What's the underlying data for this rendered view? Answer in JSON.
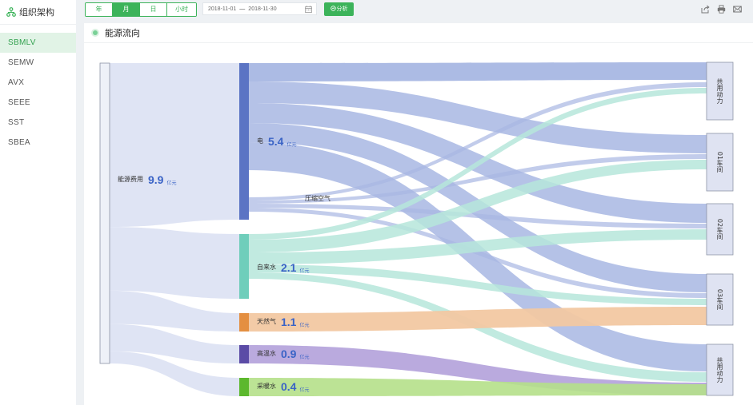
{
  "sidebar": {
    "title": "组织架构",
    "items": [
      {
        "label": "SBMLV",
        "active": true
      },
      {
        "label": "SEMW",
        "active": false
      },
      {
        "label": "AVX",
        "active": false
      },
      {
        "label": "SEEE",
        "active": false
      },
      {
        "label": "SST",
        "active": false
      },
      {
        "label": "SBEA",
        "active": false
      }
    ]
  },
  "toolbar": {
    "periods": [
      "年",
      "月",
      "日",
      "小时"
    ],
    "active_period": "月",
    "date_start": "2018-11-01",
    "date_sep": "—",
    "date_end": "2018-11-30",
    "analyze_label": "分析"
  },
  "panel": {
    "title": "能源流向"
  },
  "colors": {
    "accent": "#3cb35a",
    "elec": "#5b74c4",
    "elec_flow": "#a8b7e3",
    "water": "#6fcebb",
    "water_flow": "#b6e6da",
    "gas": "#e48f41",
    "gas_flow": "#f2c8a2",
    "hot": "#5b4ba6",
    "hot_flow": "#b6a5dc",
    "heat": "#5cb82d",
    "heat_flow": "#b5e08a",
    "source_flow": "#dde3f3"
  },
  "chart_data": {
    "type": "sankey",
    "title": "能源流向",
    "unit": "亿元",
    "source": {
      "name": "能源费用",
      "value": 9.9
    },
    "energies": [
      {
        "id": "elec",
        "name": "电",
        "value": 5.4
      },
      {
        "id": "water",
        "name": "自来水",
        "value": 2.1
      },
      {
        "id": "gas",
        "name": "天然气",
        "value": 1.1
      },
      {
        "id": "hot",
        "name": "高温水",
        "value": 0.9
      },
      {
        "id": "heat",
        "name": "采暖水",
        "value": 0.4
      }
    ],
    "intermediate": {
      "name": "压缩空气"
    },
    "targets": [
      "共用动力",
      "01车间",
      "02车间",
      "03车间",
      "共用动力"
    ]
  }
}
